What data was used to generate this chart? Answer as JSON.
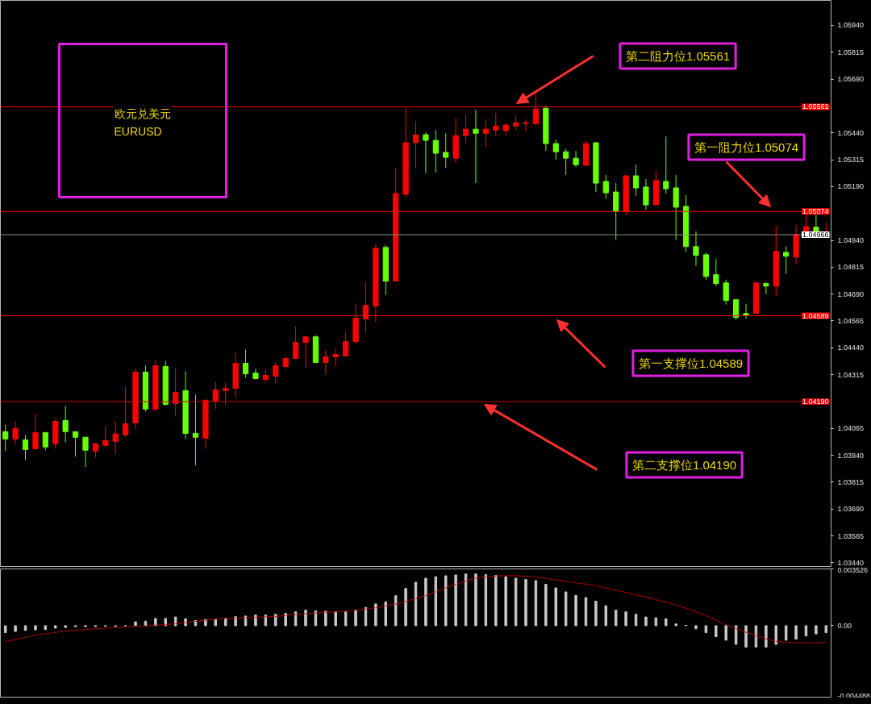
{
  "chart_data": [
    {
      "type": "candlestick",
      "categories": [
        null,
        null,
        null,
        null,
        null,
        null,
        null,
        null,
        null,
        null,
        null,
        null,
        null,
        null,
        null,
        null,
        null,
        null,
        null,
        null,
        null,
        null,
        null,
        null,
        null,
        null,
        null,
        null,
        null,
        null,
        null,
        null,
        null,
        null,
        null,
        null,
        null,
        null,
        null,
        null,
        null,
        null,
        null,
        null,
        null,
        null,
        null,
        null,
        null,
        null,
        null,
        null,
        null,
        null,
        null,
        null,
        null,
        null,
        null,
        null,
        null,
        null,
        null,
        null,
        null,
        null,
        null,
        null,
        null,
        null,
        null,
        null,
        null,
        null,
        null,
        null,
        null,
        null,
        null,
        null,
        null,
        null,
        null
      ],
      "ohlc": [
        [
          1.0405,
          1.04083,
          1.0396,
          1.04016
        ],
        [
          1.04016,
          1.04098,
          1.0399,
          1.04065
        ],
        [
          1.04012,
          1.04035,
          1.03919,
          1.03967
        ],
        [
          1.03971,
          1.04132,
          1.03964,
          1.04046
        ],
        [
          1.04046,
          1.04046,
          1.03964,
          1.03979
        ],
        [
          1.03994,
          1.0411,
          1.03971,
          1.04098
        ],
        [
          1.04102,
          1.0417,
          1.04001,
          1.0405
        ],
        [
          1.0405,
          1.0405,
          1.03934,
          1.04024
        ],
        [
          1.04024,
          1.04024,
          1.03885,
          1.03964
        ],
        [
          1.0396,
          1.03997,
          1.0393,
          1.03994
        ],
        [
          1.03986,
          1.04076,
          1.03986,
          1.04009
        ],
        [
          1.04005,
          1.04095,
          1.03945,
          1.04039
        ],
        [
          1.04035,
          1.04259,
          1.04024,
          1.04087
        ],
        [
          1.04091,
          1.04342,
          1.04061,
          1.04327
        ],
        [
          1.04327,
          1.04357,
          1.04143,
          1.04155
        ],
        [
          1.04155,
          1.04383,
          1.04147,
          1.04357
        ],
        [
          1.04353,
          1.04379,
          1.0417,
          1.04177
        ],
        [
          1.04181,
          1.04345,
          1.04121,
          1.04233
        ],
        [
          1.04241,
          1.04331,
          1.04016,
          1.04042
        ],
        [
          1.04042,
          1.04222,
          1.03893,
          1.04024
        ],
        [
          1.0402,
          1.042,
          1.03971,
          1.04196
        ],
        [
          1.04192,
          1.04282,
          1.04155,
          1.04244
        ],
        [
          1.04241,
          1.04278,
          1.04173,
          1.04252
        ],
        [
          1.04252,
          1.04417,
          1.04211,
          1.04368
        ],
        [
          1.04368,
          1.04432,
          1.04301,
          1.04319
        ],
        [
          1.04323,
          1.04342,
          1.04293,
          1.04297
        ],
        [
          1.04293,
          1.04338,
          1.04278,
          1.04312
        ],
        [
          1.04308,
          1.04375,
          1.04274,
          1.04357
        ],
        [
          1.04353,
          1.04398,
          1.04342,
          1.0439
        ],
        [
          1.0439,
          1.0454,
          1.0439,
          1.04465
        ],
        [
          1.04465,
          1.04495,
          1.04345,
          1.04491
        ],
        [
          1.04491,
          1.04499,
          1.04368,
          1.04372
        ],
        [
          1.04372,
          1.04428,
          1.04316,
          1.04398
        ],
        [
          1.04398,
          1.04439,
          1.04353,
          1.04409
        ],
        [
          1.04402,
          1.04514,
          1.04402,
          1.04469
        ],
        [
          1.04469,
          1.04645,
          1.04458,
          1.04578
        ],
        [
          1.04574,
          1.04746,
          1.0451,
          1.04637
        ],
        [
          1.04634,
          1.04922,
          1.04559,
          1.04903
        ],
        [
          1.04907,
          1.04918,
          1.04686,
          1.0475
        ],
        [
          1.0475,
          1.05278,
          1.0475,
          1.05158
        ],
        [
          1.05154,
          1.05558,
          1.05143,
          1.05394
        ],
        [
          1.05394,
          1.05495,
          1.05274,
          1.05431
        ],
        [
          1.05431,
          1.05442,
          1.05251,
          1.05405
        ],
        [
          1.05405,
          1.05453,
          1.05255,
          1.05345
        ],
        [
          1.05349,
          1.05438,
          1.05278,
          1.05326
        ],
        [
          1.05322,
          1.0551,
          1.053,
          1.05427
        ],
        [
          1.05427,
          1.05525,
          1.0539,
          1.05457
        ],
        [
          1.05457,
          1.05547,
          1.05206,
          1.05438
        ],
        [
          1.05438,
          1.05502,
          1.05375,
          1.05457
        ],
        [
          1.05453,
          1.05532,
          1.05423,
          1.05472
        ],
        [
          1.0545,
          1.05487,
          1.05427,
          1.05476
        ],
        [
          1.05472,
          1.05521,
          1.05453,
          1.05487
        ],
        [
          1.05483,
          1.05502,
          1.05446,
          1.05487
        ],
        [
          1.05483,
          1.05626,
          1.05476,
          1.05551
        ],
        [
          1.05554,
          1.05566,
          1.05356,
          1.0539
        ],
        [
          1.0539,
          1.05409,
          1.05315,
          1.05352
        ],
        [
          1.05352,
          1.05367,
          1.05244,
          1.05322
        ],
        [
          1.05322,
          1.05356,
          1.05281,
          1.05292
        ],
        [
          1.05289,
          1.05405,
          1.05289,
          1.0539
        ],
        [
          1.05394,
          1.05397,
          1.05165,
          1.05206
        ],
        [
          1.05214,
          1.05244,
          1.05132,
          1.05161
        ],
        [
          1.05165,
          1.05206,
          1.04941,
          1.05075
        ],
        [
          1.05075,
          1.05244,
          1.05057,
          1.0524
        ],
        [
          1.0524,
          1.05292,
          1.05147,
          1.05184
        ],
        [
          1.05188,
          1.05225,
          1.05083,
          1.05105
        ],
        [
          1.05105,
          1.05263,
          1.05105,
          1.05218
        ],
        [
          1.05214,
          1.05423,
          1.05158,
          1.0518
        ],
        [
          1.05184,
          1.05244,
          1.04941,
          1.05094
        ],
        [
          1.05098,
          1.0515,
          1.04884,
          1.04911
        ],
        [
          1.04911,
          1.04982,
          1.04821,
          1.0487
        ],
        [
          1.04873,
          1.04884,
          1.04757,
          1.04772
        ],
        [
          1.0478,
          1.04855,
          1.04727,
          1.04739
        ],
        [
          1.04742,
          1.04757,
          1.04641,
          1.0466
        ],
        [
          1.04664,
          1.04664,
          1.0457,
          1.04581
        ],
        [
          1.046,
          1.04645,
          1.04574,
          1.04593
        ],
        [
          1.046,
          1.04746,
          1.04596,
          1.04742
        ],
        [
          1.04739,
          1.04746,
          1.0469,
          1.04727
        ],
        [
          1.04727,
          1.05008,
          1.04682,
          1.04888
        ],
        [
          1.04884,
          1.04911,
          1.04783,
          1.04866
        ],
        [
          1.04862,
          1.05012,
          1.04828,
          1.04967
        ],
        [
          1.04963,
          1.05068,
          1.04959,
          1.05004
        ],
        [
          1.05001,
          1.05068,
          1.04959,
          1.04959
        ],
        [
          1.04959,
          1.05023,
          1.04959,
          1.04963
        ]
      ],
      "colors": [
        "#66ff00",
        "#ff0000",
        "#66ff00",
        "#ff0000",
        "#66ff00",
        "#ff0000",
        "#66ff00",
        "#66ff00",
        "#66ff00",
        "#ff0000",
        "#ff0000",
        "#ff0000",
        "#ff0000",
        "#ff0000",
        "#66ff00",
        "#ff0000",
        "#66ff00",
        "#ff0000",
        "#66ff00",
        "#66ff00",
        "#ff0000",
        "#ff0000",
        "#ff0000",
        "#ff0000",
        "#66ff00",
        "#66ff00",
        "#ff0000",
        "#ff0000",
        "#ff0000",
        "#ff0000",
        "#ff0000",
        "#66ff00",
        "#ff0000",
        "#ff0000",
        "#ff0000",
        "#ff0000",
        "#ff0000",
        "#ff0000",
        "#66ff00",
        "#ff0000",
        "#ff0000",
        "#ff0000",
        "#66ff00",
        "#66ff00",
        "#66ff00",
        "#ff0000",
        "#ff0000",
        "#66ff00",
        "#ff0000",
        "#ff0000",
        "#ff0000",
        "#ff0000",
        "#ff0000",
        "#ff0000",
        "#66ff00",
        "#66ff00",
        "#66ff00",
        "#66ff00",
        "#ff0000",
        "#66ff00",
        "#66ff00",
        "#66ff00",
        "#ff0000",
        "#66ff00",
        "#66ff00",
        "#ff0000",
        "#66ff00",
        "#66ff00",
        "#66ff00",
        "#66ff00",
        "#66ff00",
        "#66ff00",
        "#66ff00",
        "#66ff00",
        "#66ff00",
        "#ff0000",
        "#66ff00",
        "#ff0000",
        "#66ff00",
        "#ff0000",
        "#ff0000",
        "#66ff00",
        "#ff0000"
      ],
      "ylim": [
        1.03419,
        1.06056
      ],
      "yticks": [
        {
          "value": 1.0594,
          "label": "1.05940"
        },
        {
          "value": 1.05815,
          "label": "1.05815"
        },
        {
          "value": 1.0569,
          "label": "1.05690"
        },
        {
          "value": 1.0544,
          "label": "1.05440"
        },
        {
          "value": 1.05315,
          "label": "1.05315"
        },
        {
          "value": 1.0519,
          "label": "1.05190"
        },
        {
          "value": 1.0494,
          "label": "1.04940"
        },
        {
          "value": 1.04815,
          "label": "1.04815"
        },
        {
          "value": 1.0469,
          "label": "1.04690"
        },
        {
          "value": 1.04565,
          "label": "1.04565"
        },
        {
          "value": 1.0444,
          "label": "1.04440"
        },
        {
          "value": 1.04315,
          "label": "1.04315"
        },
        {
          "value": 1.04065,
          "label": "1.04065"
        },
        {
          "value": 1.0394,
          "label": "1.03940"
        },
        {
          "value": 1.03815,
          "label": "1.03815"
        },
        {
          "value": 1.0369,
          "label": "1.03690"
        },
        {
          "value": 1.03565,
          "label": "1.03565"
        },
        {
          "value": 1.0344,
          "label": "1.03440"
        }
      ],
      "ref_lines": [
        {
          "axis": "y",
          "value": 1.05561,
          "label": "1.05561",
          "color": "#ff0000"
        },
        {
          "axis": "y",
          "value": 1.05074,
          "label": "1.05074",
          "color": "#ff0000"
        },
        {
          "axis": "y",
          "value": 1.04966,
          "label": "1.04966",
          "color": "#909090"
        },
        {
          "axis": "y",
          "value": 1.04589,
          "label": "1.04589",
          "color": "#ff0000"
        },
        {
          "axis": "y",
          "value": 1.0419,
          "label": "1.04190",
          "color": "#cc0000"
        }
      ],
      "annotations": [
        "欧元兑美元",
        "EURUSD",
        "第二阻力位1.05561",
        "第一阻力位1.05074",
        "第一支撑位1.04589",
        "第二支撑位1.04190"
      ],
      "grid": false,
      "tick_labels": "y"
    },
    {
      "type": "bar",
      "categories": [
        null,
        null,
        null,
        null,
        null,
        null,
        null,
        null,
        null,
        null,
        null,
        null,
        null,
        null,
        null,
        null,
        null,
        null,
        null,
        null,
        null,
        null,
        null,
        null,
        null,
        null,
        null,
        null,
        null,
        null,
        null,
        null,
        null,
        null,
        null,
        null,
        null,
        null,
        null,
        null,
        null,
        null,
        null,
        null,
        null,
        null,
        null,
        null,
        null,
        null,
        null,
        null,
        null,
        null,
        null,
        null,
        null,
        null,
        null,
        null,
        null,
        null,
        null,
        null,
        null,
        null,
        null,
        null,
        null,
        null,
        null,
        null,
        null,
        null,
        null,
        null,
        null,
        null,
        null,
        null,
        null,
        null,
        null
      ],
      "series": [
        {
          "type": "bar",
          "color": "#c8c8c8",
          "values": [
            -0.00043,
            -0.00036,
            -0.0003,
            -0.00026,
            -0.00024,
            -0.00015,
            -0.00011,
            -6e-05,
            -6e-05,
            -6e-05,
            -4e-05,
            -4e-05,
            0,
            0.00024,
            0.00028,
            0.00045,
            0.00045,
            0.00054,
            0.00043,
            0.00032,
            0.00039,
            0.00039,
            0.00045,
            0.00056,
            0.0006,
            0.00066,
            0.00066,
            0.00071,
            0.00077,
            0.00086,
            0.00096,
            0.00092,
            0.0009,
            0.00086,
            0.00086,
            0.00096,
            0.00113,
            0.00135,
            0.00148,
            0.00186,
            0.00231,
            0.0027,
            0.00295,
            0.00304,
            0.0031,
            0.00315,
            0.00321,
            0.00321,
            0.00317,
            0.00312,
            0.00304,
            0.00295,
            0.00287,
            0.0028,
            0.00257,
            0.00235,
            0.0021,
            0.00188,
            0.00175,
            0.00152,
            0.00124,
            0.00096,
            0.00086,
            0.00071,
            0.00054,
            0.00049,
            0.00043,
            0.00011,
            2e-05,
            -0.00019,
            -0.00043,
            -0.00068,
            -0.0009,
            -0.00116,
            -0.00133,
            -0.00133,
            -0.00133,
            -0.00116,
            -0.0009,
            -0.00083,
            -0.00064,
            -0.00051,
            -0.00043
          ]
        },
        {
          "type": "line",
          "color": "#cc0000",
          "line_style": "dotted",
          "values": [
            -0.001,
            -0.00086,
            -0.00072,
            -0.00059,
            -0.0005,
            -0.00041,
            -0.00033,
            -0.00028,
            -0.00024,
            -0.0002,
            -0.00016,
            -0.00012,
            -8e-05,
            -4e-05,
            -1e-05,
            3e-05,
            6e-05,
            0.00013,
            0.0002,
            0.00027,
            0.00034,
            0.00041,
            0.00045,
            0.00047,
            0.0005,
            0.00052,
            0.00055,
            0.00058,
            0.00064,
            0.0007,
            0.00075,
            0.00079,
            0.00083,
            0.00086,
            0.0009,
            0.00095,
            0.00103,
            0.00112,
            0.00121,
            0.00134,
            0.00151,
            0.00168,
            0.00187,
            0.00211,
            0.00235,
            0.00256,
            0.00277,
            0.00296,
            0.00302,
            0.00308,
            0.00311,
            0.0031,
            0.00307,
            0.00304,
            0.00294,
            0.00284,
            0.00274,
            0.00266,
            0.00258,
            0.00249,
            0.00234,
            0.0022,
            0.00206,
            0.00192,
            0.00178,
            0.00162,
            0.00146,
            0.00129,
            0.00108,
            0.00087,
            0.00062,
            0.00034,
            6e-05,
            -0.00018,
            -0.00041,
            -0.00063,
            -0.00081,
            -0.00097,
            -0.00103,
            -0.00107,
            -0.00106,
            -0.00105,
            -0.00105
          ]
        }
      ],
      "ylim": [
        -0.004488,
        0.003526
      ],
      "yticks": [
        0.003526,
        {
          "value": 0,
          "label": "0.00"
        },
        -0.004488
      ],
      "grid": false,
      "tick_labels": "y"
    }
  ]
}
